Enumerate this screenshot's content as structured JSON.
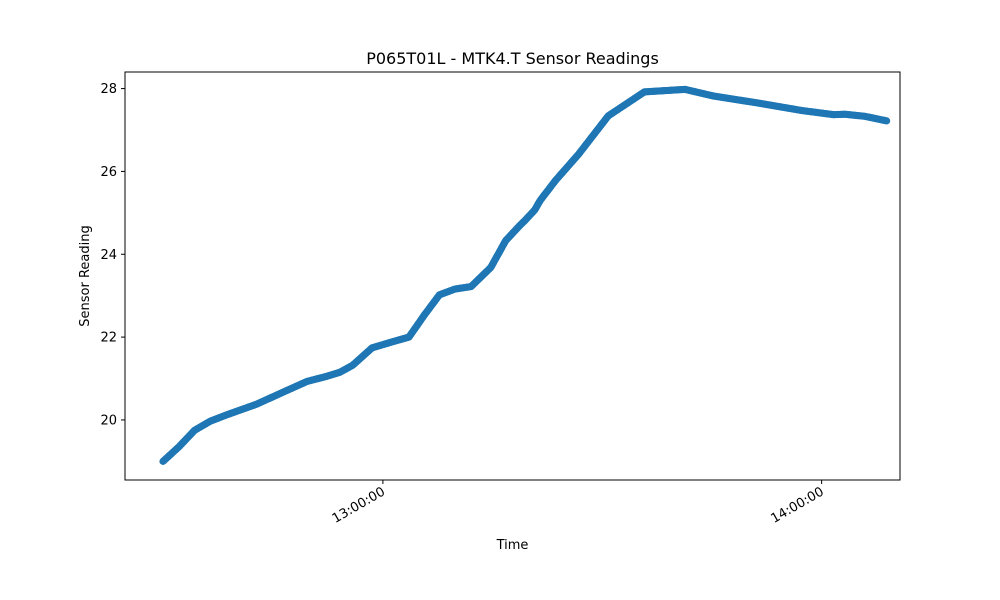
{
  "chart_data": {
    "type": "scatter",
    "title": "P065T01L - MTK4.T Sensor Readings",
    "xlabel": "Time",
    "ylabel": "Sensor Reading",
    "x_range": [
      "12:24:44",
      "14:10:43"
    ],
    "ylim": [
      18.55,
      28.4
    ],
    "yticks": [
      20,
      22,
      24,
      26,
      28
    ],
    "xticks": [
      {
        "value": "13:00:00",
        "label": "13:00:00"
      },
      {
        "value": "14:00:00",
        "label": "14:00:00"
      }
    ],
    "grid": false,
    "legend": "none",
    "series": [
      {
        "color": "#1f77b4",
        "x": [
          "12:29:56",
          "12:32:06",
          "12:34:15",
          "12:36:24",
          "12:38:36",
          "12:42:44",
          "12:46:36",
          "12:49:38",
          "12:52:16",
          "12:54:07",
          "12:55:52",
          "12:58:31",
          "13:01:11",
          "13:03:34",
          "13:05:42",
          "13:07:44",
          "13:09:52",
          "13:12:04",
          "13:14:45",
          "13:16:48",
          "13:18:42",
          "13:19:27",
          "13:20:46",
          "13:21:31",
          "13:23:36",
          "13:26:47",
          "13:30:49",
          "13:35:46",
          "13:41:19",
          "13:45:12",
          "13:51:20",
          "13:57:17",
          "14:01:38",
          "14:03:10",
          "14:05:55",
          "14:08:53"
        ],
        "y": [
          19.0,
          19.35,
          19.75,
          19.97,
          20.12,
          20.38,
          20.69,
          20.93,
          21.05,
          21.15,
          21.32,
          21.74,
          21.88,
          22.0,
          22.54,
          23.02,
          23.16,
          23.22,
          23.68,
          24.33,
          24.69,
          24.82,
          25.07,
          25.3,
          25.78,
          26.42,
          27.34,
          27.92,
          27.98,
          27.82,
          27.65,
          27.47,
          27.37,
          27.38,
          27.33,
          27.22
        ]
      }
    ]
  }
}
